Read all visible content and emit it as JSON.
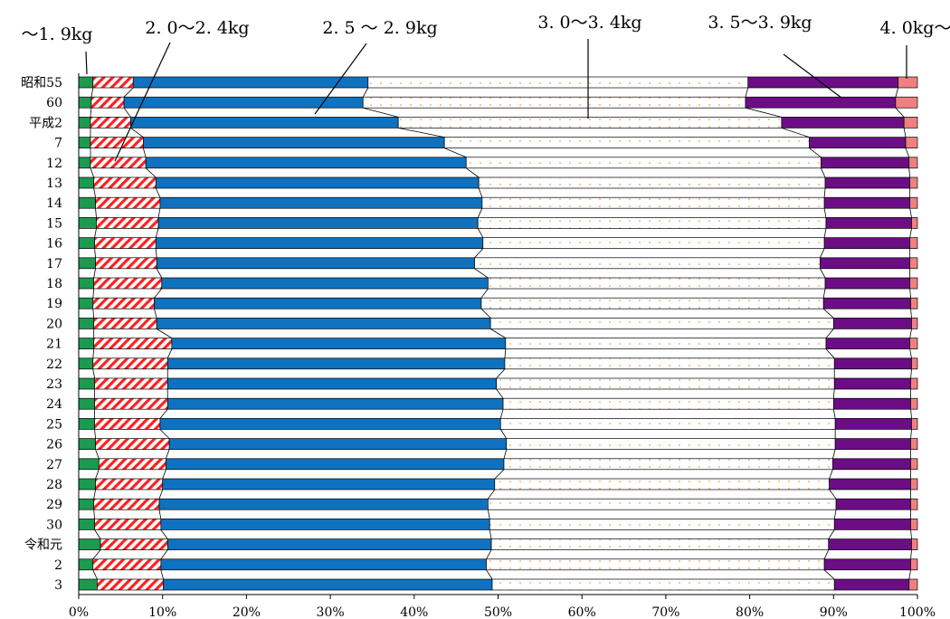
{
  "chart_data": {
    "type": "stacked-bar-horizontal-100",
    "categories": [
      "昭和55",
      "60",
      "平成2",
      "7",
      "12",
      "13",
      "14",
      "15",
      "16",
      "17",
      "18",
      "19",
      "20",
      "21",
      "22",
      "23",
      "24",
      "25",
      "26",
      "27",
      "28",
      "29",
      "30",
      "令和元",
      "2",
      "3"
    ],
    "series": [
      {
        "name": "〜1.9kg",
        "color": "#1b9a50",
        "pattern": "solid",
        "values": [
          1.7,
          1.5,
          1.4,
          1.4,
          1.4,
          1.8,
          2.0,
          2.1,
          1.9,
          2.0,
          1.8,
          1.7,
          1.8,
          1.8,
          1.7,
          1.9,
          1.9,
          1.9,
          2.0,
          2.4,
          2.0,
          1.8,
          1.9,
          2.6,
          1.7,
          2.2
        ]
      },
      {
        "name": "2.0〜2.4kg",
        "color": "#ff2020",
        "pattern": "hatch",
        "values": [
          4.8,
          3.9,
          4.8,
          6.3,
          6.6,
          7.4,
          7.7,
          7.4,
          7.3,
          7.3,
          8.1,
          7.3,
          7.5,
          9.3,
          8.9,
          8.7,
          8.7,
          7.8,
          8.8,
          8.0,
          8.0,
          7.8,
          7.9,
          8.0,
          8.1,
          7.9
        ]
      },
      {
        "name": "2.5〜2.9kg",
        "color": "#0e72c0",
        "pattern": "solid",
        "values": [
          28.0,
          28.5,
          31.9,
          35.9,
          38.2,
          38.5,
          38.4,
          38.1,
          39.0,
          37.9,
          38.9,
          39.0,
          39.8,
          39.8,
          40.2,
          39.2,
          40.0,
          40.6,
          40.2,
          40.3,
          39.6,
          39.2,
          39.2,
          38.6,
          38.8,
          39.2
        ]
      },
      {
        "name": "3.0〜3.4kg",
        "color": "#ffffff",
        "pattern": "dots-orange",
        "values": [
          45.3,
          45.6,
          45.7,
          43.5,
          42.3,
          41.3,
          40.8,
          41.5,
          40.7,
          41.2,
          40.2,
          40.8,
          40.9,
          38.2,
          39.3,
          40.3,
          39.4,
          39.9,
          39.2,
          39.2,
          39.9,
          41.5,
          41.1,
          40.2,
          40.3,
          40.8
        ]
      },
      {
        "name": "3.5〜3.9kg",
        "color": "#6c0d86",
        "pattern": "solid",
        "values": [
          17.9,
          17.9,
          14.6,
          11.5,
          10.5,
          10.1,
          10.2,
          10.2,
          10.2,
          10.7,
          10.1,
          10.4,
          9.3,
          10.0,
          9.2,
          9.1,
          9.2,
          9.1,
          9.0,
          9.3,
          9.7,
          8.9,
          9.1,
          9.9,
          10.3,
          8.9
        ]
      },
      {
        "name": "4.0kg〜",
        "color": "#f08080",
        "pattern": "solid",
        "values": [
          2.3,
          2.6,
          1.6,
          1.4,
          1.0,
          0.9,
          0.9,
          0.7,
          0.9,
          0.9,
          0.9,
          0.8,
          0.7,
          0.9,
          0.7,
          0.8,
          0.8,
          0.7,
          0.8,
          0.8,
          0.8,
          0.8,
          0.8,
          0.7,
          0.8,
          1.0
        ]
      }
    ],
    "x_ticks": [
      "0%",
      "10%",
      "20%",
      "30%",
      "40%",
      "50%",
      "60%",
      "70%",
      "80%",
      "90%",
      "100%"
    ],
    "xlim": [
      0,
      100
    ],
    "legend_labels": [
      "〜1. 9kg",
      "2. 0〜2. 4kg",
      "2. 5 〜 2. 9kg",
      "3. 0〜3. 4kg",
      "3. 5〜3. 9kg",
      "4. 0kg〜"
    ],
    "grid": false,
    "series_lines": true
  }
}
